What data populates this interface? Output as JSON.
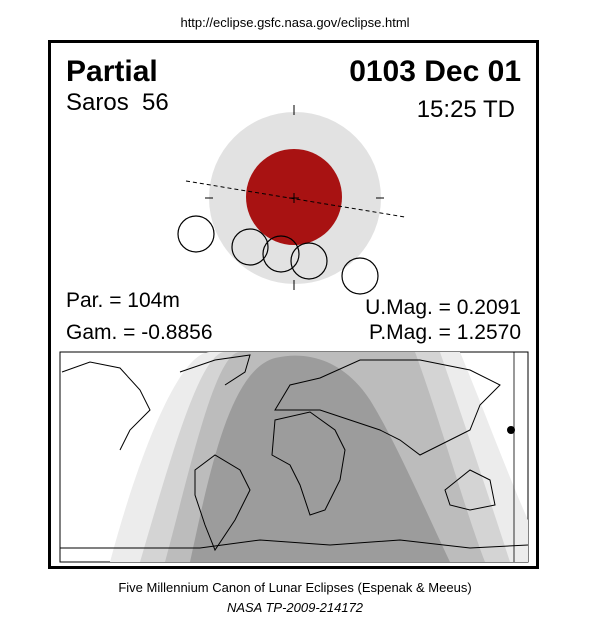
{
  "header": {
    "url": "http://eclipse.gsfc.nasa.gov/eclipse.html"
  },
  "eclipse": {
    "type": "Partial",
    "date": "0103 Dec 01",
    "saros": "Saros  56",
    "time": "15:25 TD",
    "parameters": {
      "par": "Par. = 104m",
      "gam": "Gam. = -0.8856",
      "umag": "U.Mag. = 0.2091",
      "pmag": "P.Mag. = 1.2570"
    }
  },
  "footer": {
    "title": "Five Millennium Canon of Lunar Eclipses (Espenak & Meeus)",
    "reference": "NASA TP-2009-214172"
  }
}
